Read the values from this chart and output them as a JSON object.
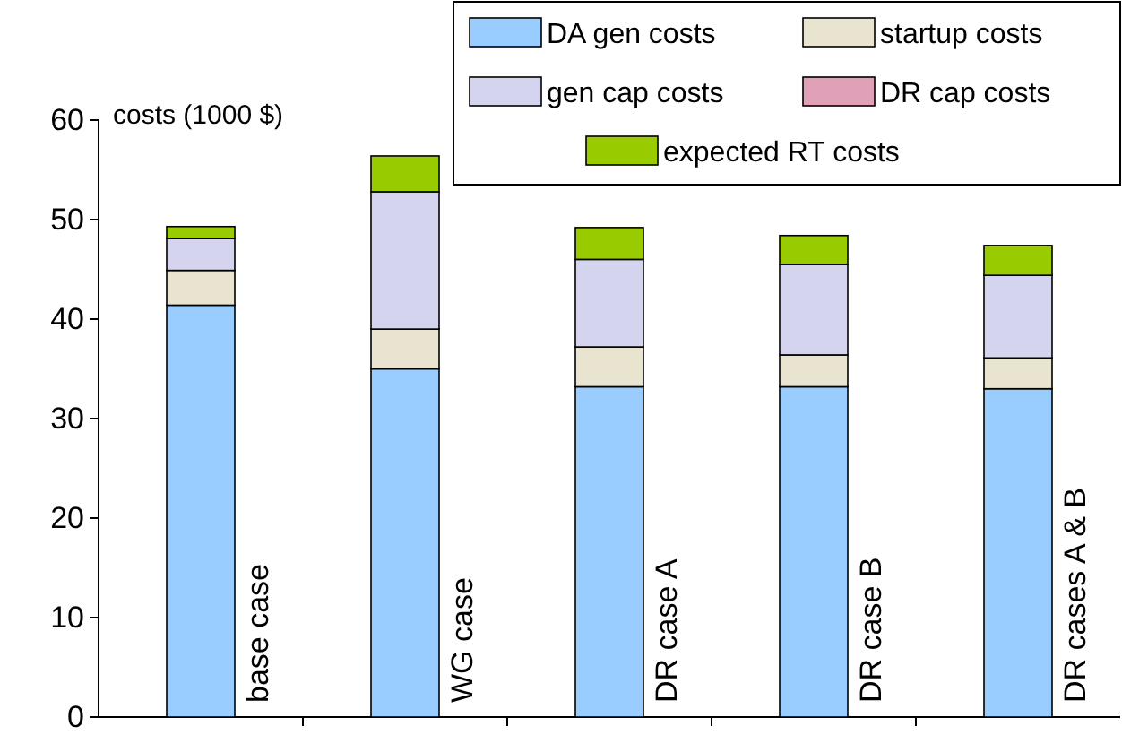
{
  "chart_data": {
    "type": "bar",
    "stacked": true,
    "ylabel": "costs (1000 $)",
    "categories": [
      "base case",
      "WG case",
      "DR case A",
      "DR case B",
      "DR cases A & B"
    ],
    "series": [
      {
        "name": "DA gen costs",
        "color": "#99ccff",
        "values": [
          41.4,
          35.0,
          33.2,
          33.2,
          33.0
        ]
      },
      {
        "name": "startup costs",
        "color": "#e8e4d0",
        "values": [
          3.5,
          4.0,
          4.0,
          3.2,
          3.1
        ]
      },
      {
        "name": "gen cap costs",
        "color": "#d4d4ee",
        "values": [
          3.2,
          13.8,
          8.8,
          9.1,
          8.3
        ]
      },
      {
        "name": "DR cap costs",
        "color": "#e0a0b8",
        "values": [
          0,
          0,
          0,
          0,
          0
        ]
      },
      {
        "name": "expected RT costs",
        "color": "#99cc00",
        "values": [
          1.2,
          3.6,
          3.2,
          2.9,
          3.0
        ]
      }
    ],
    "ylim": [
      0,
      60
    ],
    "yticks": [
      0,
      10,
      20,
      30,
      40,
      50,
      60
    ],
    "grid": false,
    "legend": "top right"
  }
}
